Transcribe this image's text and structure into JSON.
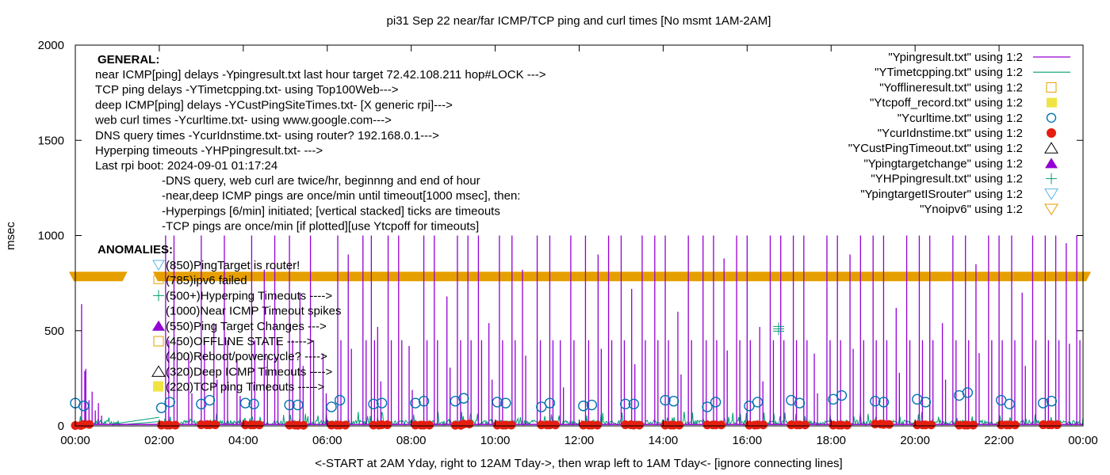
{
  "chart_data": {
    "type": "line",
    "title": "pi31 Sep 22  near/far ICMP/TCP ping and curl times [No msmt 1AM-2AM]",
    "xlabel": "<-START at 2AM Yday, right to 12AM Tday->, then wrap left to 1AM Tday<- [ignore connecting lines]",
    "ylabel": "msec",
    "xlim": [
      0,
      24
    ],
    "ylim": [
      0,
      2000
    ],
    "xticks": [
      "00:00",
      "02:00",
      "04:00",
      "06:00",
      "08:00",
      "10:00",
      "12:00",
      "14:00",
      "16:00",
      "18:00",
      "20:00",
      "22:00",
      "00:00"
    ],
    "yticks": [
      0,
      500,
      1000,
      1500,
      2000
    ],
    "grid": false,
    "legend_position": "top-right",
    "general_heading": "GENERAL:",
    "general_lines": [
      "near ICMP[ping] delays -Ypingresult.txt last hour target 72.42.108.211 hop#LOCK --->",
      "TCP ping delays -YTimetcpping.txt- using Top100Web--->",
      "deep ICMP[ping] delays -YCustPingSiteTimes.txt- [X generic rpi]--->",
      "web curl times -Ycurltime.txt- using www.google.com--->",
      "DNS query times -YcurIdnstime.txt- using router? 192.168.0.1--->",
      "Hyperping timeouts -YHPpingresult.txt- --->",
      "Last rpi boot: 2024-09-01 01:17:24"
    ],
    "general_notes": [
      "-DNS query, web curl are twice/hr, beginnng and end of hour",
      "-near,deep ICMP pings are once/min until timeout[1000 msec], then:",
      "  -Hyperpings [6/min] initiated; [vertical stacked] ticks are timeouts",
      "-TCP pings are once/min [if plotted][use Ytcpoff for timeouts]"
    ],
    "anomalies_heading": "ANOMALIES:",
    "anomalies": [
      {
        "marker": "tri-down-lightblue",
        "label": "(850)PingTarget is router!"
      },
      {
        "marker": "square-orange",
        "label": "(785)ipv6 failed"
      },
      {
        "marker": "plus-green",
        "label": "(500+)Hyperping Timeouts ---->"
      },
      {
        "marker": "none",
        "label": "(1000)Near ICMP Timeout spikes"
      },
      {
        "marker": "tri-up-purple",
        "label": "(550)Ping Target Changes --->"
      },
      {
        "marker": "square-orange-open",
        "label": "(450)OFFLINE STATE ----->"
      },
      {
        "marker": "none",
        "label": "(400)Reboot/powercycle? ---->"
      },
      {
        "marker": "tri-up-black",
        "label": "(320)Deep ICMP Timeouts ---->"
      },
      {
        "marker": "square-yellow",
        "label": "(220)TCP ping Timeouts ----->"
      }
    ],
    "legend": [
      {
        "label": "\"Ypingresult.txt\" using 1:2",
        "style": "line",
        "color": "#9400d3"
      },
      {
        "label": "\"YTimetcpping.txt\" using 1:2",
        "style": "line",
        "color": "#009e73"
      },
      {
        "label": "\"Yofflineresult.txt\" using 1:2",
        "style": "open-square",
        "color": "#e69f00"
      },
      {
        "label": "\"Ytcpoff_record.txt\" using 1:2",
        "style": "filled-square",
        "color": "#f0e442"
      },
      {
        "label": "\"Ycurltime.txt\" using 1:2",
        "style": "open-circle",
        "color": "#0072b2"
      },
      {
        "label": "\"YcurIdnstime.txt\" using 1:2",
        "style": "filled-circle",
        "color": "#e51e10"
      },
      {
        "label": "\"YCustPingTimeout.txt\" using 1:2",
        "style": "open-triangle-up",
        "color": "#000000"
      },
      {
        "label": "\"Ypingtargetchange\" using 1:2",
        "style": "filled-triangle-up",
        "color": "#9400d3"
      },
      {
        "label": "\"YHPpingresult.txt\" using 1:2",
        "style": "plus",
        "color": "#009e73"
      },
      {
        "label": "\"YpingtargetISrouter\" using 1:2",
        "style": "open-triangle-down",
        "color": "#56b4e9"
      },
      {
        "label": "\"Ynoipv6\" using 1:2",
        "style": "open-triangle-down",
        "color": "#e69f00"
      }
    ],
    "series": [
      {
        "name": "Ynoipv6",
        "note": "dense band of markers at 785 msec spanning 00:00-01:05 and 02:00-24:00",
        "value": 785,
        "segments": [
          [
            0.0,
            1.05
          ],
          [
            2.0,
            24.0
          ]
        ]
      },
      {
        "name": "Ypingresult.txt spikes",
        "note": "near ICMP delay spikes (hours, msec); baseline ~10-20 msec",
        "x": [
          0.15,
          0.25,
          0.4,
          0.55,
          2.15,
          2.35,
          2.7,
          3.0,
          3.3,
          3.55,
          3.85,
          4.2,
          4.5,
          4.75,
          5.1,
          5.35,
          5.6,
          5.9,
          6.25,
          6.5,
          6.85,
          7.05,
          7.2,
          7.45,
          7.7,
          7.95,
          8.3,
          8.55,
          8.85,
          9.1,
          9.35,
          9.6,
          9.85,
          10.1,
          10.4,
          10.65,
          11.0,
          11.3,
          11.55,
          11.8,
          12.15,
          12.45,
          12.7,
          13.0,
          13.25,
          13.5,
          13.8,
          14.05,
          14.35,
          14.6,
          14.95,
          15.2,
          15.45,
          15.75,
          16.0,
          16.3,
          16.55,
          16.8,
          17.1,
          17.35,
          17.6,
          17.9,
          18.15,
          18.45,
          18.7,
          19.0,
          19.25,
          19.55,
          19.8,
          20.1,
          20.35,
          20.65,
          20.9,
          21.2,
          21.45,
          21.75,
          22.0,
          22.3,
          22.55,
          22.8,
          23.1,
          23.35,
          23.6,
          23.85
        ],
        "y": [
          640,
          300,
          180,
          120,
          1000,
          1000,
          380,
          1000,
          540,
          1000,
          350,
          1000,
          820,
          1000,
          1000,
          700,
          1000,
          380,
          1000,
          900,
          1000,
          1000,
          520,
          1000,
          1000,
          420,
          1000,
          1000,
          680,
          1000,
          1000,
          1000,
          540,
          1000,
          1000,
          820,
          1000,
          1000,
          450,
          1000,
          1000,
          900,
          1000,
          1000,
          720,
          1000,
          1000,
          1000,
          600,
          1000,
          1000,
          1000,
          880,
          1000,
          1000,
          520,
          1000,
          1000,
          1000,
          1000,
          380,
          1000,
          1000,
          900,
          1000,
          1000,
          1000,
          620,
          1000,
          1000,
          1000,
          540,
          1000,
          1000,
          850,
          1000,
          1000,
          1000,
          700,
          1000,
          1000,
          1000,
          960,
          1000
        ]
      },
      {
        "name": "Ycurltime.txt",
        "note": "web curl times twice per hour (hours, msec)",
        "x": [
          0.0,
          0.2,
          2.05,
          2.25,
          3.0,
          3.2,
          4.05,
          4.25,
          5.1,
          5.3,
          6.1,
          6.3,
          7.1,
          7.3,
          8.1,
          8.3,
          9.05,
          9.25,
          10.05,
          10.25,
          11.1,
          11.3,
          12.1,
          12.3,
          13.1,
          13.3,
          14.05,
          14.25,
          15.05,
          15.25,
          16.05,
          16.25,
          17.05,
          17.25,
          18.05,
          18.25,
          19.05,
          19.25,
          20.05,
          20.25,
          21.05,
          21.25,
          22.05,
          22.25,
          23.05,
          23.25
        ],
        "y": [
          120,
          105,
          95,
          125,
          115,
          135,
          120,
          115,
          110,
          110,
          100,
          135,
          115,
          120,
          120,
          130,
          130,
          145,
          125,
          120,
          100,
          120,
          105,
          110,
          115,
          115,
          135,
          130,
          100,
          125,
          105,
          125,
          135,
          120,
          140,
          160,
          130,
          125,
          140,
          125,
          160,
          175,
          135,
          115,
          120,
          130
        ]
      },
      {
        "name": "YcurIdnstime.txt",
        "note": "DNS query times near 0-15 msec, twice per hour",
        "x": [
          0.0,
          0.2,
          2.05,
          2.25,
          3.0,
          3.2,
          4.05,
          4.25,
          5.1,
          5.3,
          6.1,
          6.3,
          7.1,
          7.3,
          8.1,
          8.3,
          9.05,
          9.25,
          10.05,
          10.25,
          11.1,
          11.3,
          12.1,
          12.3,
          13.1,
          13.3,
          14.05,
          14.25,
          15.05,
          15.25,
          16.05,
          16.25,
          17.05,
          17.25,
          18.05,
          18.25,
          19.05,
          19.25,
          20.05,
          20.25,
          21.05,
          21.25,
          22.05,
          22.25,
          23.05,
          23.25
        ],
        "y": [
          2,
          8,
          4,
          4,
          6,
          6,
          5,
          5,
          4,
          3,
          4,
          4,
          4,
          6,
          4,
          4,
          3,
          10,
          4,
          4,
          5,
          5,
          4,
          4,
          6,
          4,
          4,
          4,
          5,
          5,
          4,
          5,
          5,
          5,
          4,
          4,
          10,
          8,
          5,
          5,
          4,
          4,
          5,
          5,
          6,
          6
        ]
      },
      {
        "name": "YHPpingresult.txt",
        "note": "Hyperping timeout stacked ticks",
        "x": [
          16.75
        ],
        "y": [
          510
        ]
      }
    ]
  }
}
